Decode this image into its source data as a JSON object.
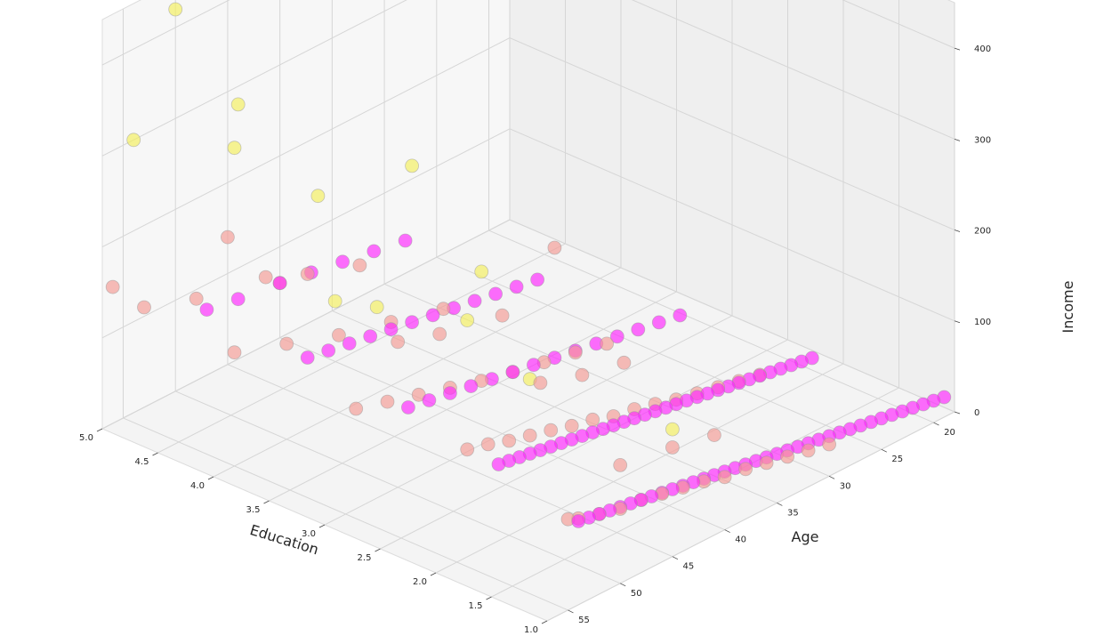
{
  "chart_data": {
    "type": "scatter",
    "projection": "3d",
    "title": "",
    "xlabel": "Education",
    "ylabel": "Age",
    "zlabel": "Income",
    "xlim": [
      1.0,
      5.0
    ],
    "ylim": [
      18,
      57
    ],
    "zlim": [
      0,
      450
    ],
    "x_ticks": [
      "1.0",
      "1.5",
      "2.0",
      "2.5",
      "3.0",
      "3.5",
      "4.0",
      "4.5",
      "5.0"
    ],
    "y_ticks": [
      "20",
      "25",
      "30",
      "35",
      "40",
      "45",
      "50",
      "55"
    ],
    "z_ticks": [
      "0",
      "100",
      "200",
      "300",
      "400"
    ],
    "grid": true,
    "legend": "none",
    "colors": {
      "cluster_0": "#f59a94",
      "cluster_1": "#ff22ff",
      "cluster_2": "#f5f05a",
      "pane": "#f2f2f2",
      "grid": "#d6d6d6"
    },
    "series": [
      {
        "color_key": "cluster_0",
        "points": [
          [
            1,
            30,
            35
          ],
          [
            1,
            32,
            40
          ],
          [
            1,
            34,
            45
          ],
          [
            1,
            36,
            50
          ],
          [
            1,
            38,
            55
          ],
          [
            1,
            40,
            58
          ],
          [
            1,
            42,
            65
          ],
          [
            1,
            44,
            70
          ],
          [
            1,
            46,
            75
          ],
          [
            1,
            48,
            80
          ],
          [
            1,
            50,
            82
          ],
          [
            1,
            52,
            88
          ],
          [
            1,
            54,
            95
          ],
          [
            1,
            55,
            100
          ],
          [
            1,
            41,
            110
          ],
          [
            1,
            45,
            120
          ],
          [
            1,
            50,
            130
          ],
          [
            2,
            26,
            35
          ],
          [
            2,
            28,
            40
          ],
          [
            2,
            30,
            45
          ],
          [
            2,
            32,
            50
          ],
          [
            2,
            34,
            55
          ],
          [
            2,
            36,
            62
          ],
          [
            2,
            38,
            68
          ],
          [
            2,
            40,
            72
          ],
          [
            2,
            42,
            80
          ],
          [
            2,
            44,
            85
          ],
          [
            2,
            46,
            92
          ],
          [
            2,
            48,
            98
          ],
          [
            2,
            50,
            104
          ],
          [
            2,
            52,
            112
          ],
          [
            2,
            54,
            118
          ],
          [
            2,
            39,
            125
          ],
          [
            2,
            43,
            135
          ],
          [
            2,
            47,
            150
          ],
          [
            3,
            30,
            40
          ],
          [
            3,
            33,
            48
          ],
          [
            3,
            36,
            55
          ],
          [
            3,
            39,
            62
          ],
          [
            3,
            42,
            70
          ],
          [
            3,
            45,
            80
          ],
          [
            3,
            48,
            90
          ],
          [
            3,
            51,
            100
          ],
          [
            3,
            54,
            110
          ],
          [
            3,
            40,
            130
          ],
          [
            3,
            46,
            145
          ],
          [
            3,
            50,
            160
          ],
          [
            3,
            35,
            175
          ],
          [
            4,
            35,
            55
          ],
          [
            4,
            40,
            70
          ],
          [
            4,
            45,
            85
          ],
          [
            4,
            50,
            105
          ],
          [
            4,
            55,
            125
          ],
          [
            4,
            43,
            150
          ],
          [
            4,
            48,
            170
          ],
          [
            4,
            52,
            190
          ],
          [
            5,
            40,
            60
          ],
          [
            5,
            48,
            90
          ],
          [
            5,
            53,
            110
          ],
          [
            5,
            45,
            140
          ],
          [
            5,
            56,
            150
          ]
        ]
      },
      {
        "color_key": "cluster_1",
        "points": [
          [
            1,
            19,
            22
          ],
          [
            1,
            20,
            24
          ],
          [
            1,
            21,
            26
          ],
          [
            1,
            22,
            28
          ],
          [
            1,
            23,
            30
          ],
          [
            1,
            24,
            32
          ],
          [
            1,
            25,
            34
          ],
          [
            1,
            26,
            36
          ],
          [
            1,
            27,
            38
          ],
          [
            1,
            28,
            40
          ],
          [
            1,
            29,
            42
          ],
          [
            1,
            30,
            44
          ],
          [
            1,
            31,
            46
          ],
          [
            1,
            32,
            48
          ],
          [
            1,
            33,
            50
          ],
          [
            1,
            34,
            52
          ],
          [
            1,
            35,
            54
          ],
          [
            1,
            36,
            56
          ],
          [
            1,
            37,
            58
          ],
          [
            1,
            38,
            60
          ],
          [
            1,
            39,
            62
          ],
          [
            1,
            40,
            64
          ],
          [
            1,
            41,
            66
          ],
          [
            1,
            42,
            68
          ],
          [
            1,
            43,
            70
          ],
          [
            1,
            44,
            72
          ],
          [
            1,
            45,
            74
          ],
          [
            1,
            46,
            76
          ],
          [
            1,
            47,
            78
          ],
          [
            1,
            48,
            80
          ],
          [
            1,
            49,
            82
          ],
          [
            1,
            50,
            84
          ],
          [
            1,
            51,
            86
          ],
          [
            1,
            52,
            88
          ],
          [
            1,
            53,
            90
          ],
          [
            1,
            54,
            92
          ],
          [
            2,
            21,
            24
          ],
          [
            2,
            22,
            26
          ],
          [
            2,
            23,
            28
          ],
          [
            2,
            24,
            30
          ],
          [
            2,
            25,
            32
          ],
          [
            2,
            26,
            34
          ],
          [
            2,
            27,
            36
          ],
          [
            2,
            28,
            38
          ],
          [
            2,
            29,
            40
          ],
          [
            2,
            30,
            42
          ],
          [
            2,
            31,
            44
          ],
          [
            2,
            32,
            46
          ],
          [
            2,
            33,
            48
          ],
          [
            2,
            34,
            50
          ],
          [
            2,
            35,
            52
          ],
          [
            2,
            36,
            54
          ],
          [
            2,
            37,
            56
          ],
          [
            2,
            38,
            58
          ],
          [
            2,
            39,
            60
          ],
          [
            2,
            40,
            62
          ],
          [
            2,
            41,
            64
          ],
          [
            2,
            42,
            66
          ],
          [
            2,
            43,
            68
          ],
          [
            2,
            44,
            70
          ],
          [
            2,
            45,
            72
          ],
          [
            2,
            46,
            74
          ],
          [
            2,
            47,
            76
          ],
          [
            2,
            48,
            78
          ],
          [
            2,
            49,
            80
          ],
          [
            2,
            50,
            82
          ],
          [
            2,
            51,
            84
          ],
          [
            3,
            23,
            30
          ],
          [
            3,
            25,
            34
          ],
          [
            3,
            27,
            38
          ],
          [
            3,
            29,
            42
          ],
          [
            3,
            31,
            46
          ],
          [
            3,
            33,
            50
          ],
          [
            3,
            35,
            54
          ],
          [
            3,
            37,
            58
          ],
          [
            3,
            39,
            62
          ],
          [
            3,
            41,
            66
          ],
          [
            3,
            43,
            70
          ],
          [
            3,
            45,
            74
          ],
          [
            3,
            47,
            78
          ],
          [
            3,
            49,
            82
          ],
          [
            4,
            26,
            34
          ],
          [
            4,
            28,
            38
          ],
          [
            4,
            30,
            42
          ],
          [
            4,
            32,
            46
          ],
          [
            4,
            34,
            50
          ],
          [
            4,
            36,
            54
          ],
          [
            4,
            38,
            58
          ],
          [
            4,
            40,
            62
          ],
          [
            4,
            42,
            66
          ],
          [
            4,
            44,
            70
          ],
          [
            4,
            46,
            74
          ],
          [
            4,
            48,
            78
          ],
          [
            5,
            28,
            36
          ],
          [
            5,
            31,
            42
          ],
          [
            5,
            34,
            48
          ],
          [
            5,
            37,
            54
          ],
          [
            5,
            40,
            60
          ],
          [
            5,
            44,
            66
          ],
          [
            5,
            47,
            72
          ]
        ]
      },
      {
        "color_key": "cluster_2",
        "points": [
          [
            1,
            45,
            140
          ],
          [
            2,
            48,
            160
          ],
          [
            3,
            42,
            190
          ],
          [
            3,
            52,
            210
          ],
          [
            4,
            38,
            230
          ],
          [
            4,
            47,
            250
          ],
          [
            5,
            44,
            280
          ],
          [
            5,
            54,
            300
          ],
          [
            4,
            55,
            350
          ],
          [
            5,
            50,
            420
          ],
          [
            2,
            54,
            260
          ],
          [
            3,
            56,
            240
          ]
        ]
      }
    ]
  }
}
